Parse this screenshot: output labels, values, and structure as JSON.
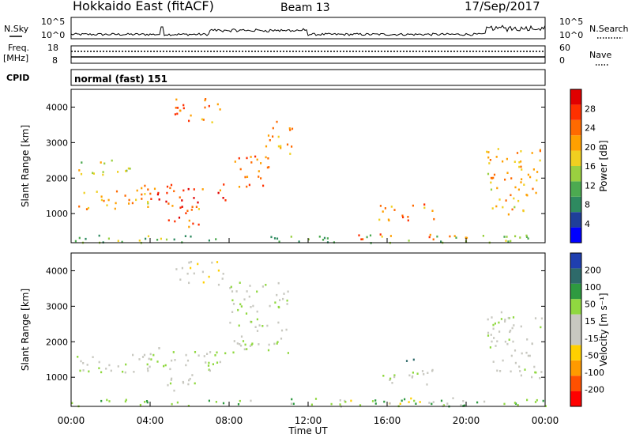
{
  "header": {
    "station": "Hokkaido East (fitACF)",
    "beam": "Beam 13",
    "date": "17/Sep/2017"
  },
  "status_panels": {
    "nsky_label": "N.Sky",
    "nsky_ticks": [
      "10^5",
      "10^0"
    ],
    "nsearch_label": "N.Search",
    "nsearch_ticks": [
      "10^5",
      "10^0"
    ],
    "freq_label": "Freq.",
    "freq_unit": "[MHz]",
    "freq_ticks": [
      "18",
      "8"
    ],
    "nave_label": "Nave",
    "nave_ticks": [
      "60",
      "0"
    ],
    "cpid_label": "CPID",
    "cpid_value": "normal (fast) 151"
  },
  "chart_data": [
    {
      "type": "heatmap",
      "panel": "power",
      "ylabel": "Slant Range [km]",
      "xlabel": "",
      "ylim": [
        180,
        4500
      ],
      "yticks": [
        "1000",
        "2000",
        "3000",
        "4000"
      ],
      "xticks": [
        "00:00",
        "04:00",
        "08:00",
        "12:00",
        "16:00",
        "20:00",
        "00:00"
      ],
      "colorbar": {
        "label": "Power [dB]",
        "ticks": [
          "28",
          "24",
          "20",
          "16",
          "12",
          "8",
          "4"
        ],
        "colors": [
          "#0000ff",
          "#1f3f9a",
          "#2e8a60",
          "#4caa50",
          "#9ad040",
          "#f0d020",
          "#ffa000",
          "#ff6a00",
          "#ff3000",
          "#e00000"
        ]
      },
      "regions": [
        {
          "t0": 0.1,
          "t1": 4.0,
          "r0": 1150,
          "r1": 1700,
          "value": 20
        },
        {
          "t0": 3.5,
          "t1": 8.2,
          "r0": 1200,
          "r1": 1850,
          "value": 26
        },
        {
          "t0": 4.5,
          "t1": 6.5,
          "r0": 650,
          "r1": 1200,
          "value": 24
        },
        {
          "t0": 8.0,
          "t1": 10.0,
          "r0": 1700,
          "r1": 2700,
          "value": 24
        },
        {
          "t0": 9.8,
          "t1": 11.2,
          "r0": 2700,
          "r1": 3700,
          "value": 22
        },
        {
          "t0": 5.2,
          "t1": 7.8,
          "r0": 3600,
          "r1": 4300,
          "value": 24
        },
        {
          "t0": 0.3,
          "t1": 3.0,
          "r0": 2100,
          "r1": 2600,
          "value": 16
        },
        {
          "t0": 13.5,
          "t1": 20.5,
          "r0": 300,
          "r1": 450,
          "value": 24
        },
        {
          "t0": 15.5,
          "t1": 18.5,
          "r0": 800,
          "r1": 1300,
          "value": 22
        },
        {
          "t0": 21.0,
          "t1": 23.8,
          "r0": 1000,
          "r1": 2900,
          "value": 20
        },
        {
          "t0": 0.0,
          "t1": 24.0,
          "r0": 200,
          "r1": 420,
          "value": 12
        }
      ]
    },
    {
      "type": "heatmap",
      "panel": "velocity",
      "ylabel": "Slant Range [km]",
      "xlabel": "Time UT",
      "ylim": [
        180,
        4500
      ],
      "yticks": [
        "1000",
        "2000",
        "3000",
        "4000"
      ],
      "xticks": [
        "00:00",
        "04:00",
        "08:00",
        "12:00",
        "16:00",
        "20:00",
        "00:00"
      ],
      "colorbar": {
        "label": "Velocity [m s⁻¹]",
        "ticks": [
          "200",
          "100",
          "50",
          "15",
          "-15",
          "-50",
          "-100",
          "-200"
        ],
        "colors": [
          "#ff0000",
          "#ff5000",
          "#ff9a00",
          "#ffd000",
          "#c8c8c0",
          "#c8c8c0",
          "#90d840",
          "#2e9a40",
          "#2e6a6a",
          "#1f3fb0"
        ]
      },
      "regions": [
        {
          "t0": 0.1,
          "t1": 4.0,
          "r0": 1100,
          "r1": 1700,
          "value": 0
        },
        {
          "t0": 3.5,
          "t1": 8.2,
          "r0": 1200,
          "r1": 1850,
          "value": 5
        },
        {
          "t0": 4.5,
          "t1": 6.5,
          "r0": 650,
          "r1": 1200,
          "value": -5
        },
        {
          "t0": 8.0,
          "t1": 11.0,
          "r0": 1700,
          "r1": 3700,
          "value": 10
        },
        {
          "t0": 5.2,
          "t1": 7.8,
          "r0": 3600,
          "r1": 4300,
          "value": -30
        },
        {
          "t0": 13.5,
          "t1": 21.0,
          "r0": 280,
          "r1": 450,
          "value": -40
        },
        {
          "t0": 15.5,
          "t1": 18.5,
          "r0": 800,
          "r1": 1300,
          "value": 0
        },
        {
          "t0": 16.5,
          "t1": 17.5,
          "r0": 1400,
          "r1": 1550,
          "value": 120
        },
        {
          "t0": 21.0,
          "t1": 23.8,
          "r0": 1000,
          "r1": 2900,
          "value": 0
        },
        {
          "t0": 0.0,
          "t1": 24.0,
          "r0": 200,
          "r1": 420,
          "value": 40
        }
      ]
    }
  ]
}
